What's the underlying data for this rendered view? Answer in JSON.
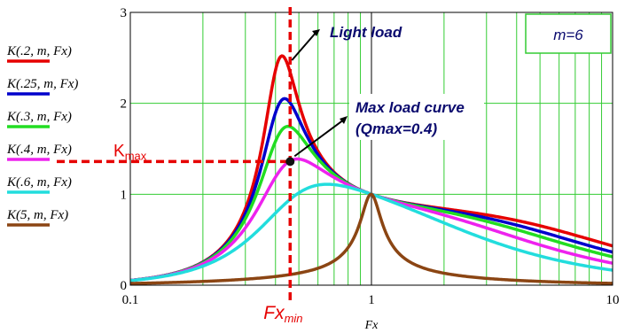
{
  "colors": {
    "grid": "#33cc33",
    "unity_grid": "#000000",
    "axis": "#000000",
    "marker_red": "#e60000",
    "marker_dot": "#111111",
    "annotation_text": "#0a0a6e",
    "box_border": "#33cc33"
  },
  "chart_data": {
    "type": "line",
    "x_scale": "log",
    "xlim": [
      0.1,
      10
    ],
    "ylim": [
      0,
      3
    ],
    "xlabel": "Fx",
    "ylabel": "",
    "x_ticks": [
      "0.1",
      "1",
      "10"
    ],
    "y_ticks": [
      "0",
      "1",
      "2",
      "3"
    ],
    "grid": true,
    "legend_position": "left",
    "parameters": {
      "m_label": "m=6",
      "m": 6
    },
    "series": [
      {
        "name": "K(.2, m, Fx)",
        "Q": 0.2,
        "color": "#e60000"
      },
      {
        "name": "K(.25, m, Fx)",
        "Q": 0.25,
        "color": "#0000cc"
      },
      {
        "name": "K(.3, m, Fx)",
        "Q": 0.3,
        "color": "#22dd22"
      },
      {
        "name": "K(.4, m, Fx)",
        "Q": 0.4,
        "color": "#ee22ee"
      },
      {
        "name": "K(.6, m, Fx)",
        "Q": 0.6,
        "color": "#22dddd"
      },
      {
        "name": "K(5, m, Fx)",
        "Q": 5,
        "color": "#8b4513"
      }
    ],
    "markers": {
      "fx_min": 0.46,
      "k_max": 1.36,
      "fx_min_label": "Fx",
      "fx_min_subscript": "min",
      "k_max_label": "K",
      "k_max_subscript": "max"
    },
    "annotations": {
      "light_load": "Light load",
      "max_load_line1": "Max load curve",
      "max_load_line2": "(Qmax=0.4)"
    }
  }
}
